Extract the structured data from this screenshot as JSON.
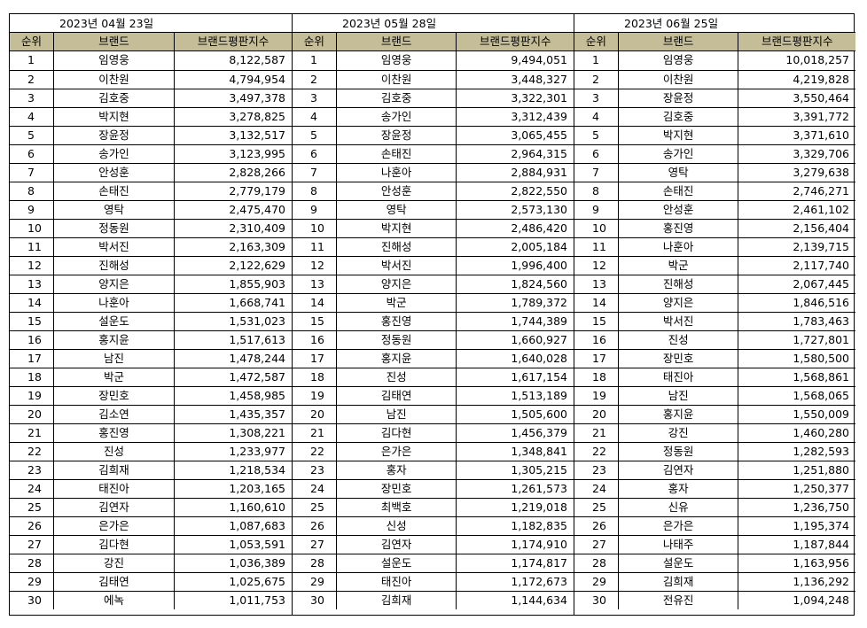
{
  "columns": {
    "rank": "순위",
    "brand": "브랜드",
    "index": "브랜드평판지수"
  },
  "blocks": [
    {
      "date": "2023년 04월 23일",
      "rows": [
        [
          "1",
          "임영웅",
          "8,122,587"
        ],
        [
          "2",
          "이찬원",
          "4,794,954"
        ],
        [
          "3",
          "김호중",
          "3,497,378"
        ],
        [
          "4",
          "박지현",
          "3,278,825"
        ],
        [
          "5",
          "장윤정",
          "3,132,517"
        ],
        [
          "6",
          "송가인",
          "3,123,995"
        ],
        [
          "7",
          "안성훈",
          "2,828,266"
        ],
        [
          "8",
          "손태진",
          "2,779,179"
        ],
        [
          "9",
          "영탁",
          "2,475,470"
        ],
        [
          "10",
          "정동원",
          "2,310,409"
        ],
        [
          "11",
          "박서진",
          "2,163,309"
        ],
        [
          "12",
          "진해성",
          "2,122,629"
        ],
        [
          "13",
          "양지은",
          "1,855,903"
        ],
        [
          "14",
          "나훈아",
          "1,668,741"
        ],
        [
          "15",
          "설운도",
          "1,531,023"
        ],
        [
          "16",
          "홍지윤",
          "1,517,613"
        ],
        [
          "17",
          "남진",
          "1,478,244"
        ],
        [
          "18",
          "박군",
          "1,472,587"
        ],
        [
          "19",
          "장민호",
          "1,458,985"
        ],
        [
          "20",
          "김소연",
          "1,435,357"
        ],
        [
          "21",
          "홍진영",
          "1,308,221"
        ],
        [
          "22",
          "진성",
          "1,233,977"
        ],
        [
          "23",
          "김희재",
          "1,218,534"
        ],
        [
          "24",
          "태진아",
          "1,203,165"
        ],
        [
          "25",
          "김연자",
          "1,160,610"
        ],
        [
          "26",
          "은가은",
          "1,087,683"
        ],
        [
          "27",
          "김다현",
          "1,053,591"
        ],
        [
          "28",
          "강진",
          "1,036,389"
        ],
        [
          "29",
          "김태연",
          "1,025,675"
        ],
        [
          "30",
          "에녹",
          "1,011,753"
        ]
      ]
    },
    {
      "date": "2023년 05월 28일",
      "rows": [
        [
          "1",
          "임영웅",
          "9,494,051"
        ],
        [
          "2",
          "이찬원",
          "3,448,327"
        ],
        [
          "3",
          "김호중",
          "3,322,301"
        ],
        [
          "4",
          "송가인",
          "3,312,439"
        ],
        [
          "5",
          "장윤정",
          "3,065,455"
        ],
        [
          "6",
          "손태진",
          "2,964,315"
        ],
        [
          "7",
          "나훈아",
          "2,884,931"
        ],
        [
          "8",
          "안성훈",
          "2,822,550"
        ],
        [
          "9",
          "영탁",
          "2,573,130"
        ],
        [
          "10",
          "박지현",
          "2,486,420"
        ],
        [
          "11",
          "진해성",
          "2,005,184"
        ],
        [
          "12",
          "박서진",
          "1,996,400"
        ],
        [
          "13",
          "양지은",
          "1,824,560"
        ],
        [
          "14",
          "박군",
          "1,789,372"
        ],
        [
          "15",
          "홍진영",
          "1,744,389"
        ],
        [
          "16",
          "정동원",
          "1,660,927"
        ],
        [
          "17",
          "홍지윤",
          "1,640,028"
        ],
        [
          "18",
          "진성",
          "1,617,154"
        ],
        [
          "19",
          "김태연",
          "1,513,189"
        ],
        [
          "20",
          "남진",
          "1,505,600"
        ],
        [
          "21",
          "김다현",
          "1,456,379"
        ],
        [
          "22",
          "은가은",
          "1,348,841"
        ],
        [
          "23",
          "홍자",
          "1,305,215"
        ],
        [
          "24",
          "장민호",
          "1,261,573"
        ],
        [
          "25",
          "최백호",
          "1,219,018"
        ],
        [
          "26",
          "신성",
          "1,182,835"
        ],
        [
          "27",
          "김연자",
          "1,174,910"
        ],
        [
          "28",
          "설운도",
          "1,174,817"
        ],
        [
          "29",
          "태진아",
          "1,172,673"
        ],
        [
          "30",
          "김희재",
          "1,144,634"
        ]
      ]
    },
    {
      "date": "2023년 06월 25일",
      "rows": [
        [
          "1",
          "임영웅",
          "10,018,257"
        ],
        [
          "2",
          "이찬원",
          "4,219,828"
        ],
        [
          "3",
          "장윤정",
          "3,550,464"
        ],
        [
          "4",
          "김호중",
          "3,391,772"
        ],
        [
          "5",
          "박지현",
          "3,371,610"
        ],
        [
          "6",
          "송가인",
          "3,329,706"
        ],
        [
          "7",
          "영탁",
          "3,279,638"
        ],
        [
          "8",
          "손태진",
          "2,746,271"
        ],
        [
          "9",
          "안성훈",
          "2,461,102"
        ],
        [
          "10",
          "홍진영",
          "2,156,404"
        ],
        [
          "11",
          "나훈아",
          "2,139,715"
        ],
        [
          "12",
          "박군",
          "2,117,740"
        ],
        [
          "13",
          "진해성",
          "2,067,445"
        ],
        [
          "14",
          "양지은",
          "1,846,516"
        ],
        [
          "15",
          "박서진",
          "1,783,463"
        ],
        [
          "16",
          "진성",
          "1,727,801"
        ],
        [
          "17",
          "장민호",
          "1,580,500"
        ],
        [
          "18",
          "태진아",
          "1,568,861"
        ],
        [
          "19",
          "남진",
          "1,568,065"
        ],
        [
          "20",
          "홍지윤",
          "1,550,009"
        ],
        [
          "21",
          "강진",
          "1,460,280"
        ],
        [
          "22",
          "정동원",
          "1,282,593"
        ],
        [
          "23",
          "김연자",
          "1,251,880"
        ],
        [
          "24",
          "홍자",
          "1,250,377"
        ],
        [
          "25",
          "신유",
          "1,236,750"
        ],
        [
          "26",
          "은가은",
          "1,195,374"
        ],
        [
          "27",
          "나태주",
          "1,187,844"
        ],
        [
          "28",
          "설운도",
          "1,163,956"
        ],
        [
          "29",
          "김희재",
          "1,136,292"
        ],
        [
          "30",
          "전유진",
          "1,094,248"
        ]
      ]
    }
  ]
}
